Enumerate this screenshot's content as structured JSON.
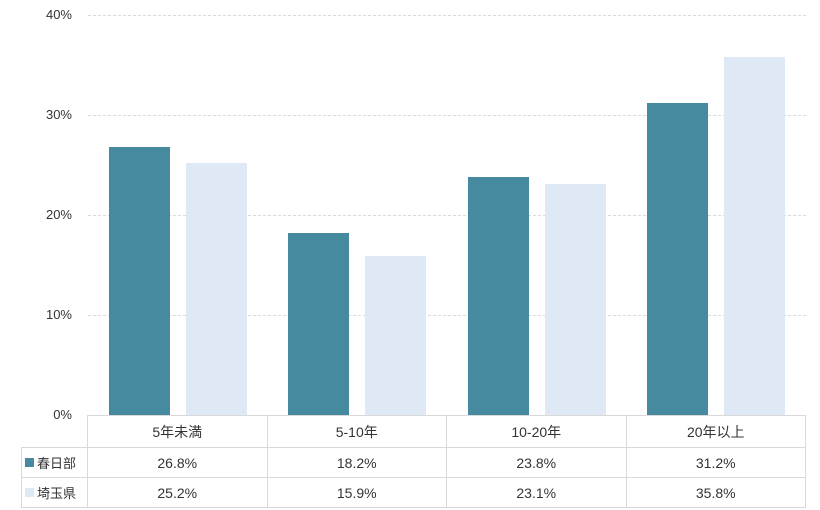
{
  "chart": {
    "background": "#ffffff",
    "text_color": "#333333",
    "grid_color": "#d9d9d9"
  },
  "chart_data": {
    "type": "bar",
    "title": "",
    "xlabel": "",
    "ylabel": "",
    "categories": [
      "5年未満",
      "5-10年",
      "10-20年",
      "20年以上"
    ],
    "series": [
      {
        "name": "春日部",
        "color": "#468AA0",
        "values": [
          26.8,
          18.2,
          23.8,
          31.2
        ],
        "value_labels": [
          "26.8%",
          "18.2%",
          "23.8%",
          "31.2%"
        ]
      },
      {
        "name": "埼玉県",
        "color": "#DEE9F5",
        "values": [
          25.2,
          15.9,
          23.1,
          35.8
        ],
        "value_labels": [
          "25.2%",
          "15.9%",
          "23.1%",
          "35.8%"
        ]
      }
    ],
    "ylim": [
      0,
      40
    ],
    "yticks": [
      {
        "value": 40,
        "label": "40%"
      },
      {
        "value": 30,
        "label": "30%"
      },
      {
        "value": 20,
        "label": "20%"
      },
      {
        "value": 10,
        "label": "10%"
      },
      {
        "value": 0,
        "label": "0%"
      }
    ],
    "grid": true,
    "legend_position": "data-table-row-headers"
  }
}
